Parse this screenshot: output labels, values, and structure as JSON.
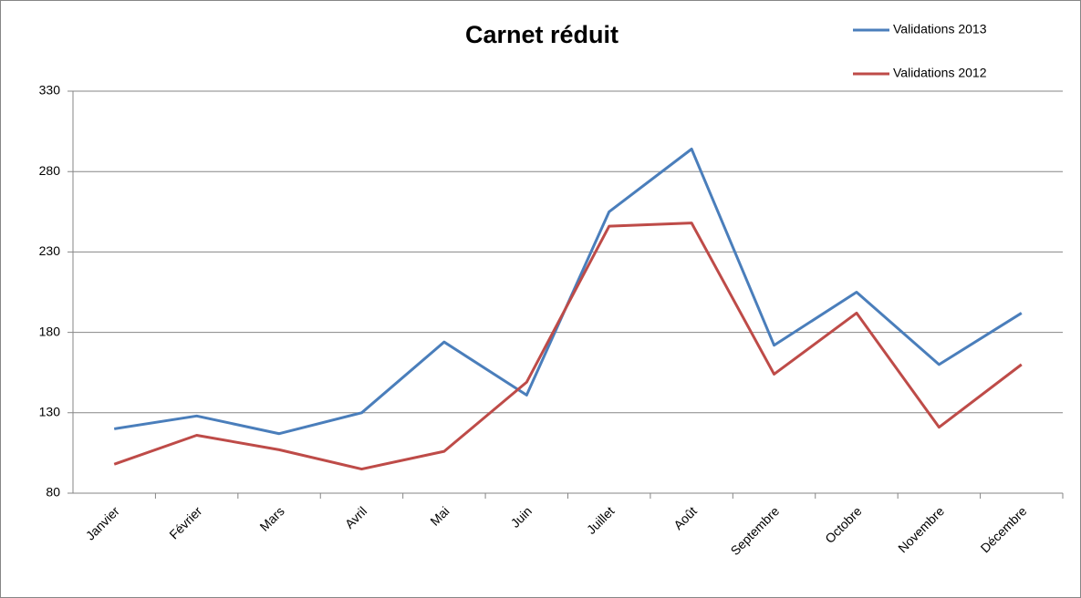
{
  "chart_data": {
    "type": "line",
    "title": "Carnet réduit",
    "categories": [
      "Janvier",
      "Février",
      "Mars",
      "Avril",
      "Mai",
      "Juin",
      "Juillet",
      "Août",
      "Septembre",
      "Octobre",
      "Novembre",
      "Décembre"
    ],
    "series": [
      {
        "name": "Validations 2013",
        "color": "#4a7ebb",
        "values": [
          120,
          128,
          117,
          130,
          174,
          141,
          255,
          294,
          172,
          205,
          160,
          192
        ]
      },
      {
        "name": "Validations 2012",
        "color": "#be4b48",
        "values": [
          98,
          116,
          107,
          95,
          106,
          149,
          246,
          248,
          154,
          192,
          121,
          160
        ]
      }
    ],
    "ylim": [
      80,
      330
    ],
    "yticks": [
      80,
      130,
      180,
      230,
      280,
      330
    ],
    "grid": true,
    "legend": "top-right"
  }
}
